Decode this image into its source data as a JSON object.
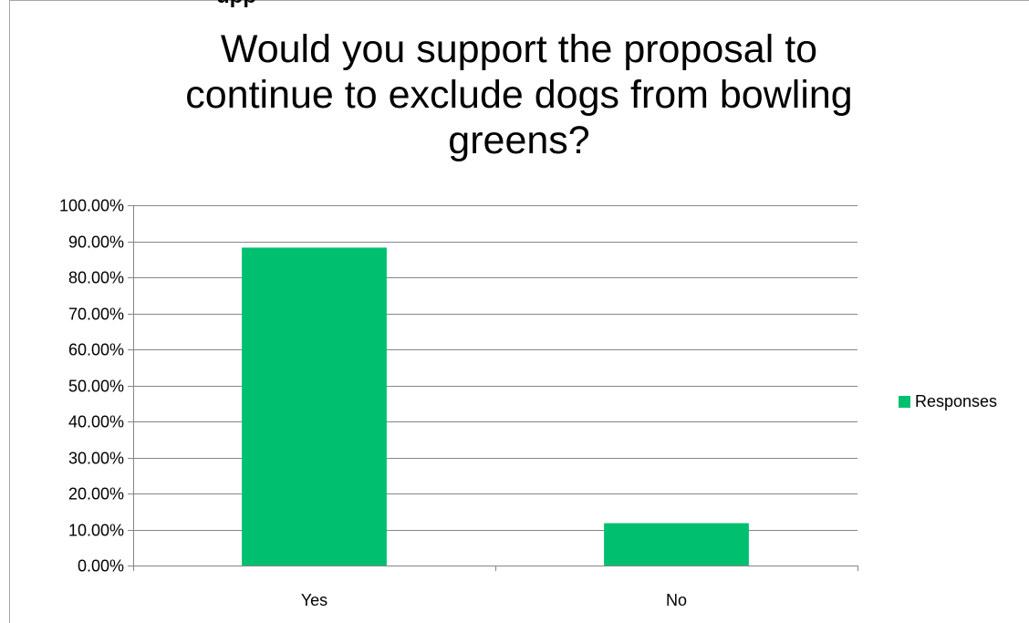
{
  "top_clipped_text": "upp",
  "chart_data": {
    "type": "bar",
    "title": "Would you support the proposal to continue to exclude dogs from bowling greens?",
    "title_lines": [
      "Would you support the proposal to",
      "continue to exclude dogs from bowling",
      "greens?"
    ],
    "categories": [
      "Yes",
      "No"
    ],
    "series": [
      {
        "name": "Responses",
        "values": [
          0.8824,
          0.1176
        ],
        "color": "#00c070"
      }
    ],
    "ylim": [
      0,
      1
    ],
    "yticks": [
      0,
      0.1,
      0.2,
      0.3,
      0.4,
      0.5,
      0.6,
      0.7,
      0.8,
      0.9,
      1.0
    ],
    "ytick_labels": [
      "0.00%",
      "10.00%",
      "20.00%",
      "30.00%",
      "40.00%",
      "50.00%",
      "60.00%",
      "70.00%",
      "80.00%",
      "90.00%",
      "100.00%"
    ],
    "xlabel": "",
    "ylabel": "",
    "grid": true,
    "legend": "right"
  }
}
